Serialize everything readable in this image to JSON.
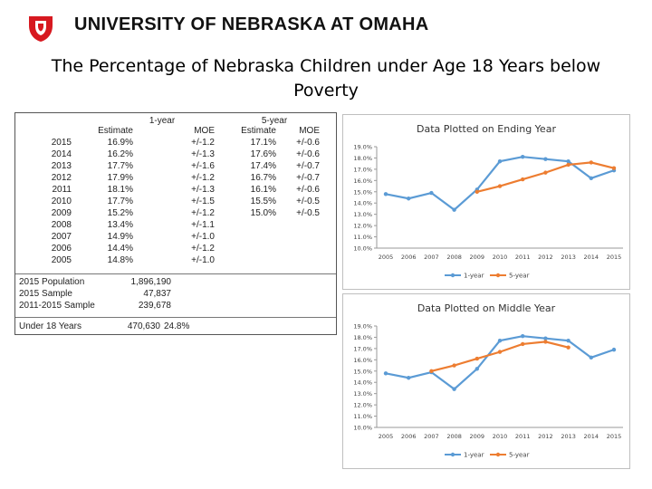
{
  "header": {
    "brand": "UNIVERSITY OF NEBRASKA AT OMAHA"
  },
  "title": "The Percentage of Nebraska Children under Age 18 Years below Poverty",
  "table": {
    "group_1year": "1-year",
    "group_5year": "5-year",
    "col_estimate": "Estimate",
    "col_moe": "MOE",
    "rows": [
      {
        "year": "2015",
        "e1": "16.9%",
        "m1": "+/-1.2",
        "e5": "17.1%",
        "m5": "+/-0.6"
      },
      {
        "year": "2014",
        "e1": "16.2%",
        "m1": "+/-1.3",
        "e5": "17.6%",
        "m5": "+/-0.6"
      },
      {
        "year": "2013",
        "e1": "17.7%",
        "m1": "+/-1.6",
        "e5": "17.4%",
        "m5": "+/-0.7"
      },
      {
        "year": "2012",
        "e1": "17.9%",
        "m1": "+/-1.2",
        "e5": "16.7%",
        "m5": "+/-0.7"
      },
      {
        "year": "2011",
        "e1": "18.1%",
        "m1": "+/-1.3",
        "e5": "16.1%",
        "m5": "+/-0.6"
      },
      {
        "year": "2010",
        "e1": "17.7%",
        "m1": "+/-1.5",
        "e5": "15.5%",
        "m5": "+/-0.5"
      },
      {
        "year": "2009",
        "e1": "15.2%",
        "m1": "+/-1.2",
        "e5": "15.0%",
        "m5": "+/-0.5"
      },
      {
        "year": "2008",
        "e1": "13.4%",
        "m1": "+/-1.1",
        "e5": "",
        "m5": ""
      },
      {
        "year": "2007",
        "e1": "14.9%",
        "m1": "+/-1.0",
        "e5": "",
        "m5": ""
      },
      {
        "year": "2006",
        "e1": "14.4%",
        "m1": "+/-1.2",
        "e5": "",
        "m5": ""
      },
      {
        "year": "2005",
        "e1": "14.8%",
        "m1": "+/-1.0",
        "e5": "",
        "m5": ""
      }
    ],
    "population_label": "2015 Population",
    "population_value": "1,896,190",
    "sample_label": "2015 Sample",
    "sample_value": "47,837",
    "sample5_label": "2011-2015 Sample",
    "sample5_value": "239,678",
    "under18_label": "Under 18 Years",
    "under18_value": "470,630",
    "under18_pct": "24.8%"
  },
  "chart_data": [
    {
      "type": "line",
      "title": "Data Plotted on Ending Year",
      "categories": [
        "2005",
        "2006",
        "2007",
        "2008",
        "2009",
        "2010",
        "2011",
        "2012",
        "2013",
        "2014",
        "2015"
      ],
      "ylim": [
        10.0,
        19.0
      ],
      "yticks": [
        "10.0%",
        "11.0%",
        "12.0%",
        "13.0%",
        "14.0%",
        "15.0%",
        "16.0%",
        "17.0%",
        "18.0%",
        "19.0%"
      ],
      "series": [
        {
          "name": "1-year",
          "color": "#5b9bd5",
          "values": [
            14.8,
            14.4,
            14.9,
            13.4,
            15.2,
            17.7,
            18.1,
            17.9,
            17.7,
            16.2,
            16.9
          ]
        },
        {
          "name": "5-year",
          "color": "#ed7d31",
          "values": [
            null,
            null,
            null,
            null,
            15.0,
            15.5,
            16.1,
            16.7,
            17.4,
            17.6,
            17.1
          ]
        }
      ]
    },
    {
      "type": "line",
      "title": "Data Plotted on Middle Year",
      "categories": [
        "2005",
        "2006",
        "2007",
        "2008",
        "2009",
        "2010",
        "2011",
        "2012",
        "2013",
        "2014",
        "2015"
      ],
      "ylim": [
        10.0,
        19.0
      ],
      "yticks": [
        "10.0%",
        "11.0%",
        "12.0%",
        "13.0%",
        "14.0%",
        "15.0%",
        "16.0%",
        "17.0%",
        "18.0%",
        "19.0%"
      ],
      "series": [
        {
          "name": "1-year",
          "color": "#5b9bd5",
          "values": [
            14.8,
            14.4,
            14.9,
            13.4,
            15.2,
            17.7,
            18.1,
            17.9,
            17.7,
            16.2,
            16.9
          ]
        },
        {
          "name": "5-year",
          "color": "#ed7d31",
          "values": [
            null,
            null,
            15.0,
            15.5,
            16.1,
            16.7,
            17.4,
            17.6,
            17.1,
            null,
            null
          ]
        }
      ]
    }
  ]
}
